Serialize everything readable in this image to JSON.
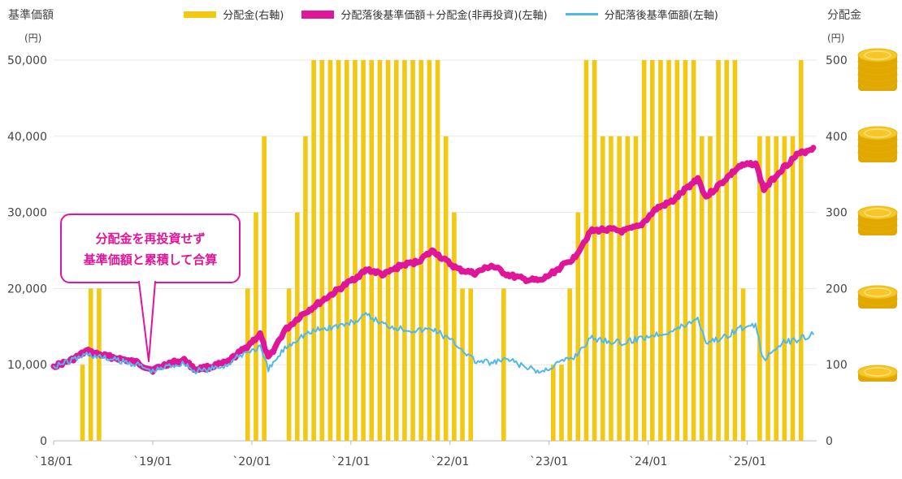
{
  "legend": {
    "dist_label": "分配金(右軸)",
    "total_label": "分配落後基準価額＋分配金(非再投資)(左軸)",
    "nav_label": "分配落後基準価額(左軸)"
  },
  "axis": {
    "left_title": "基準価額",
    "left_unit": "(円)",
    "right_title": "分配金",
    "right_unit": "(円)"
  },
  "callout": {
    "line1": "分配金を再投資せず",
    "line2": "基準価額と累積して合算"
  },
  "colors": {
    "dist": "#f2c811",
    "total": "#e0169a",
    "nav": "#4fb9ec",
    "coin": "#f6c62b"
  },
  "chart_data": {
    "type": "bar+line",
    "x_ticks": [
      "`18/01",
      "`19/01",
      "`20/01",
      "`21/01",
      "`22/01",
      "`23/01",
      "`24/01",
      "`25/01"
    ],
    "y_left": {
      "ticks": [
        "0",
        "10,000",
        "20,000",
        "30,000",
        "40,000",
        "50,000"
      ],
      "range": [
        0,
        50000
      ]
    },
    "y_right": {
      "ticks": [
        "0",
        "100",
        "200",
        "300",
        "400",
        "500"
      ],
      "range": [
        0,
        500
      ]
    },
    "distribution_bars": [
      {
        "x": "2018-04",
        "v": 100
      },
      {
        "x": "2018-05",
        "v": 200
      },
      {
        "x": "2018-06",
        "v": 200
      },
      {
        "x": "2019-12",
        "v": 200
      },
      {
        "x": "2020-01",
        "v": 300
      },
      {
        "x": "2020-02",
        "v": 400
      },
      {
        "x": "2020-05",
        "v": 200
      },
      {
        "x": "2020-06",
        "v": 300
      },
      {
        "x": "2020-07",
        "v": 400
      },
      {
        "x": "2020-08",
        "v": 500
      },
      {
        "x": "2020-09",
        "v": 500
      },
      {
        "x": "2020-10",
        "v": 500
      },
      {
        "x": "2020-11",
        "v": 500
      },
      {
        "x": "2020-12",
        "v": 500
      },
      {
        "x": "2021-01",
        "v": 500
      },
      {
        "x": "2021-02",
        "v": 500
      },
      {
        "x": "2021-03",
        "v": 500
      },
      {
        "x": "2021-04",
        "v": 500
      },
      {
        "x": "2021-05",
        "v": 500
      },
      {
        "x": "2021-06",
        "v": 500
      },
      {
        "x": "2021-07",
        "v": 500
      },
      {
        "x": "2021-08",
        "v": 500
      },
      {
        "x": "2021-09",
        "v": 500
      },
      {
        "x": "2021-10",
        "v": 500
      },
      {
        "x": "2021-11",
        "v": 500
      },
      {
        "x": "2021-12",
        "v": 400
      },
      {
        "x": "2022-01",
        "v": 300
      },
      {
        "x": "2022-02",
        "v": 200
      },
      {
        "x": "2022-03",
        "v": 200
      },
      {
        "x": "2022-07",
        "v": 200
      },
      {
        "x": "2023-01",
        "v": 100
      },
      {
        "x": "2023-02",
        "v": 100
      },
      {
        "x": "2023-03",
        "v": 200
      },
      {
        "x": "2023-04",
        "v": 300
      },
      {
        "x": "2023-05",
        "v": 500
      },
      {
        "x": "2023-06",
        "v": 500
      },
      {
        "x": "2023-07",
        "v": 400
      },
      {
        "x": "2023-08",
        "v": 400
      },
      {
        "x": "2023-09",
        "v": 400
      },
      {
        "x": "2023-10",
        "v": 400
      },
      {
        "x": "2023-11",
        "v": 400
      },
      {
        "x": "2023-12",
        "v": 500
      },
      {
        "x": "2024-01",
        "v": 500
      },
      {
        "x": "2024-02",
        "v": 500
      },
      {
        "x": "2024-03",
        "v": 500
      },
      {
        "x": "2024-04",
        "v": 500
      },
      {
        "x": "2024-05",
        "v": 500
      },
      {
        "x": "2024-06",
        "v": 500
      },
      {
        "x": "2024-07",
        "v": 400
      },
      {
        "x": "2024-08",
        "v": 400
      },
      {
        "x": "2024-09",
        "v": 500
      },
      {
        "x": "2024-10",
        "v": 500
      },
      {
        "x": "2024-11",
        "v": 500
      },
      {
        "x": "2024-12",
        "v": 200
      },
      {
        "x": "2025-02",
        "v": 400
      },
      {
        "x": "2025-03",
        "v": 400
      },
      {
        "x": "2025-04",
        "v": 400
      },
      {
        "x": "2025-05",
        "v": 400
      },
      {
        "x": "2025-06",
        "v": 400
      },
      {
        "x": "2025-07",
        "v": 500
      }
    ],
    "total_series": [
      [
        "2018-01",
        9800
      ],
      [
        "2018-03",
        10500
      ],
      [
        "2018-05",
        11800
      ],
      [
        "2018-07",
        11200
      ],
      [
        "2018-09",
        10800
      ],
      [
        "2018-11",
        10300
      ],
      [
        "2019-01",
        9300
      ],
      [
        "2019-03",
        10200
      ],
      [
        "2019-05",
        10600
      ],
      [
        "2019-06",
        9400
      ],
      [
        "2019-08",
        9700
      ],
      [
        "2019-10",
        10300
      ],
      [
        "2019-12",
        12000
      ],
      [
        "2020-02",
        14000
      ],
      [
        "2020-03",
        10800
      ],
      [
        "2020-05",
        14500
      ],
      [
        "2020-07",
        16500
      ],
      [
        "2020-09",
        18000
      ],
      [
        "2020-11",
        19500
      ],
      [
        "2021-01",
        21000
      ],
      [
        "2021-03",
        22500
      ],
      [
        "2021-05",
        21800
      ],
      [
        "2021-07",
        23000
      ],
      [
        "2021-09",
        23500
      ],
      [
        "2021-11",
        25000
      ],
      [
        "2021-12",
        24000
      ],
      [
        "2022-02",
        22500
      ],
      [
        "2022-04",
        22000
      ],
      [
        "2022-06",
        23000
      ],
      [
        "2022-08",
        21800
      ],
      [
        "2022-10",
        21200
      ],
      [
        "2022-12",
        21000
      ],
      [
        "2023-02",
        22500
      ],
      [
        "2023-04",
        24000
      ],
      [
        "2023-06",
        27500
      ],
      [
        "2023-08",
        27800
      ],
      [
        "2023-10",
        27500
      ],
      [
        "2023-12",
        28200
      ],
      [
        "2024-02",
        30500
      ],
      [
        "2024-04",
        31500
      ],
      [
        "2024-06",
        33500
      ],
      [
        "2024-07",
        34500
      ],
      [
        "2024-08",
        32000
      ],
      [
        "2024-10",
        34000
      ],
      [
        "2024-12",
        36000
      ],
      [
        "2025-02",
        36500
      ],
      [
        "2025-03",
        33000
      ],
      [
        "2025-05",
        35500
      ],
      [
        "2025-07",
        37500
      ],
      [
        "2025-09",
        38500
      ]
    ],
    "nav_series": [
      [
        "2018-01",
        9800
      ],
      [
        "2018-03",
        10500
      ],
      [
        "2018-05",
        11400
      ],
      [
        "2018-07",
        10900
      ],
      [
        "2018-09",
        10500
      ],
      [
        "2018-11",
        10100
      ],
      [
        "2019-01",
        9100
      ],
      [
        "2019-03",
        9900
      ],
      [
        "2019-05",
        10200
      ],
      [
        "2019-06",
        9100
      ],
      [
        "2019-08",
        9400
      ],
      [
        "2019-10",
        10000
      ],
      [
        "2019-12",
        11500
      ],
      [
        "2020-02",
        12300
      ],
      [
        "2020-03",
        9300
      ],
      [
        "2020-05",
        12200
      ],
      [
        "2020-07",
        13800
      ],
      [
        "2020-09",
        14600
      ],
      [
        "2020-11",
        15000
      ],
      [
        "2021-01",
        15500
      ],
      [
        "2021-03",
        16500
      ],
      [
        "2021-05",
        15300
      ],
      [
        "2021-07",
        14800
      ],
      [
        "2021-09",
        14500
      ],
      [
        "2021-11",
        14700
      ],
      [
        "2021-12",
        14000
      ],
      [
        "2022-02",
        12500
      ],
      [
        "2022-04",
        10500
      ],
      [
        "2022-06",
        10200
      ],
      [
        "2022-08",
        10700
      ],
      [
        "2022-10",
        9700
      ],
      [
        "2022-12",
        9000
      ],
      [
        "2023-02",
        10200
      ],
      [
        "2023-04",
        11000
      ],
      [
        "2023-06",
        13500
      ],
      [
        "2023-08",
        13200
      ],
      [
        "2023-10",
        12800
      ],
      [
        "2023-12",
        13500
      ],
      [
        "2024-02",
        14000
      ],
      [
        "2024-04",
        14500
      ],
      [
        "2024-06",
        15500
      ],
      [
        "2024-07",
        16200
      ],
      [
        "2024-08",
        13000
      ],
      [
        "2024-10",
        13500
      ],
      [
        "2024-12",
        14800
      ],
      [
        "2025-02",
        15000
      ],
      [
        "2025-03",
        10500
      ],
      [
        "2025-05",
        12800
      ],
      [
        "2025-07",
        13300
      ],
      [
        "2025-09",
        14000
      ]
    ]
  }
}
